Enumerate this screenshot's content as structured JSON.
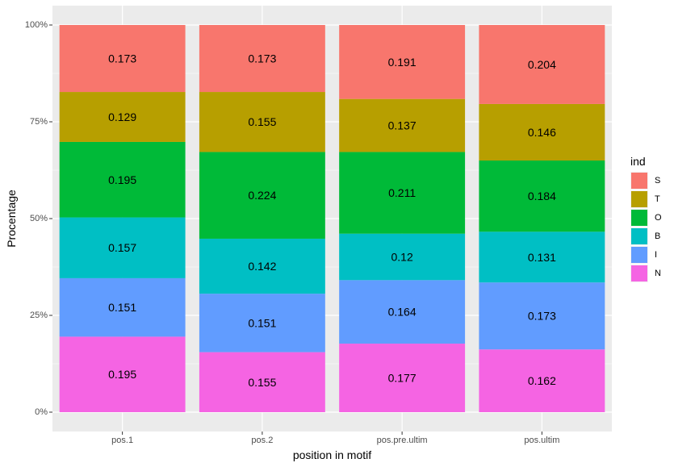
{
  "chart_data": {
    "type": "bar",
    "stacked": true,
    "categories": [
      "pos.1",
      "pos.2",
      "pos.pre.ultim",
      "pos.ultim"
    ],
    "series": [
      {
        "name": "N",
        "color": "#F564E3",
        "values": [
          0.195,
          0.155,
          0.177,
          0.162
        ],
        "labels": [
          "0.195",
          "0.155",
          "0.177",
          "0.162"
        ]
      },
      {
        "name": "I",
        "color": "#619CFF",
        "values": [
          0.151,
          0.151,
          0.164,
          0.173
        ],
        "labels": [
          "0.151",
          "0.151",
          "0.164",
          "0.173"
        ]
      },
      {
        "name": "B",
        "color": "#00BFC4",
        "values": [
          0.157,
          0.142,
          0.12,
          0.131
        ],
        "labels": [
          "0.157",
          "0.142",
          "0.12",
          "0.131"
        ]
      },
      {
        "name": "O",
        "color": "#00BA38",
        "values": [
          0.195,
          0.224,
          0.211,
          0.184
        ],
        "labels": [
          "0.195",
          "0.224",
          "0.211",
          "0.184"
        ]
      },
      {
        "name": "T",
        "color": "#B79F00",
        "values": [
          0.129,
          0.155,
          0.137,
          0.146
        ],
        "labels": [
          "0.129",
          "0.155",
          "0.137",
          "0.146"
        ]
      },
      {
        "name": "S",
        "color": "#F8766D",
        "values": [
          0.173,
          0.173,
          0.191,
          0.204
        ],
        "labels": [
          "0.173",
          "0.173",
          "0.191",
          "0.204"
        ]
      }
    ],
    "legend_order": [
      "S",
      "T",
      "O",
      "B",
      "I",
      "N"
    ],
    "legend_title": "ind",
    "legend_position": "right",
    "xlabel": "position in motif",
    "ylabel": "Procentage",
    "ylim": [
      0,
      1
    ],
    "yticks": [
      0,
      0.25,
      0.5,
      0.75,
      1
    ],
    "ytick_labels": [
      "0%",
      "25%",
      "50%",
      "75%",
      "100%"
    ],
    "grid": true,
    "panel_background": "#EBEBEB"
  }
}
